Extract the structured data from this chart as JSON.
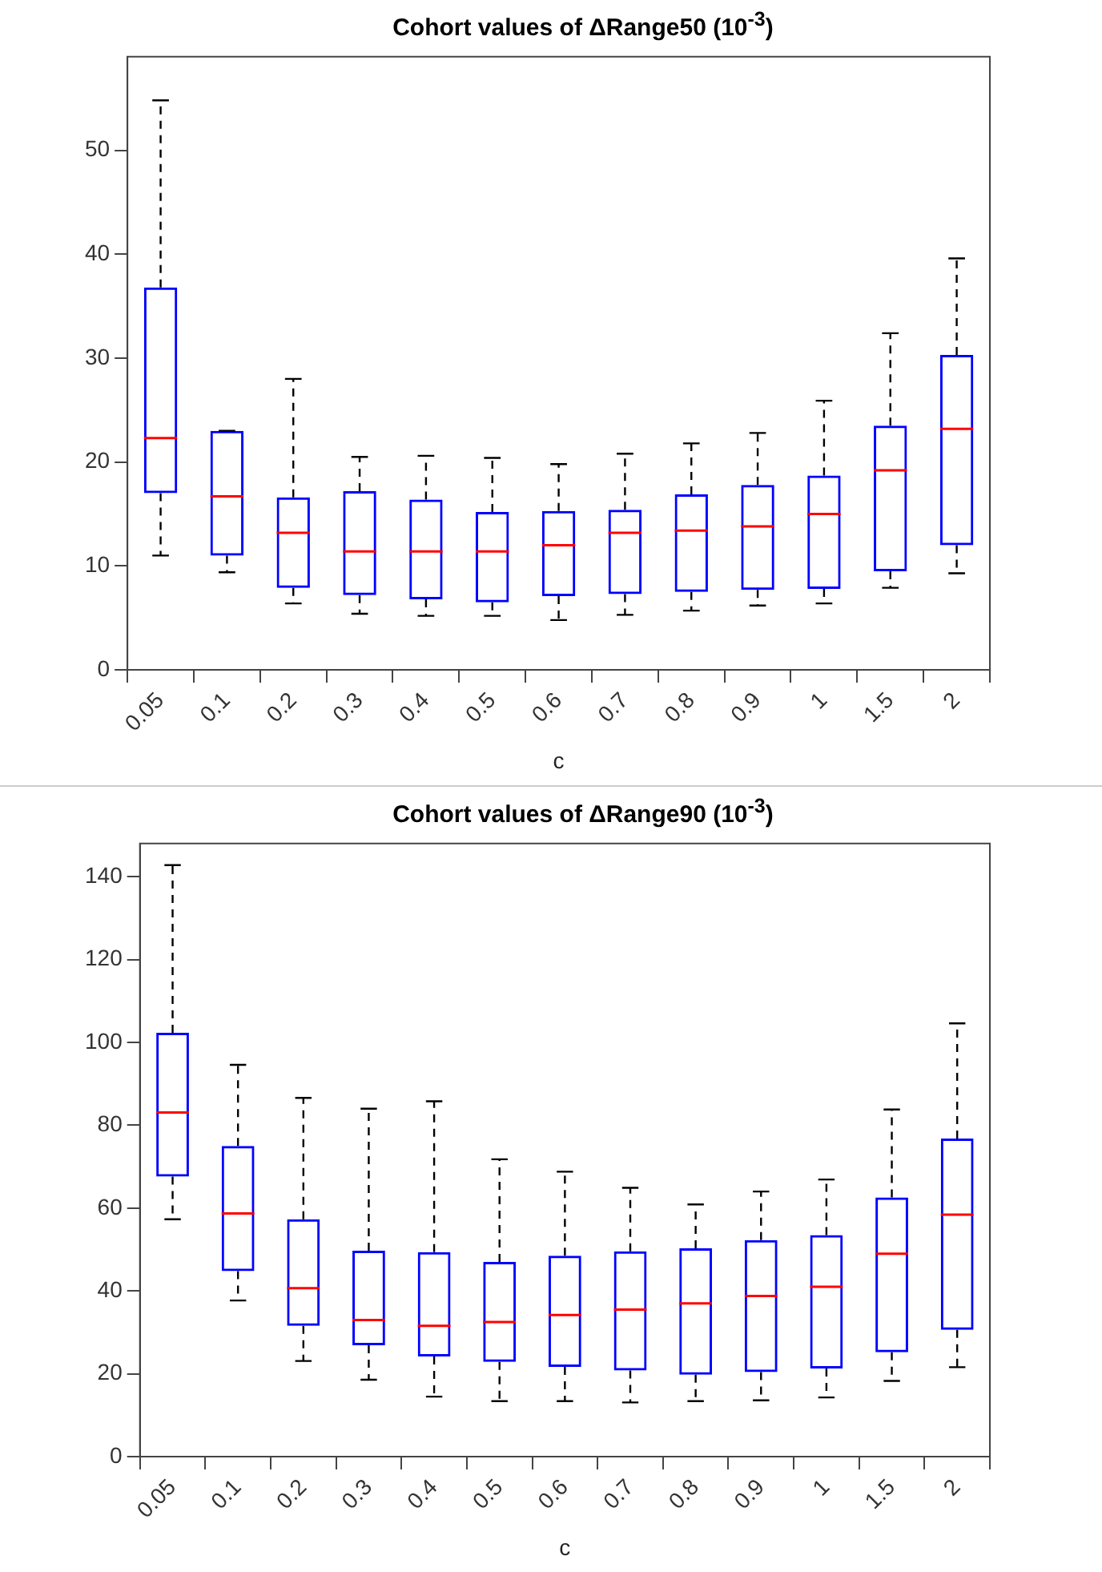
{
  "chart_data": [
    {
      "type": "box",
      "title": "Cohort values of ΔRange50 (10$^{-3}$)",
      "xlabel": "c",
      "color": "#0000ff",
      "categories": [
        "0.05",
        "0.1",
        "0.2",
        "0.3",
        "0.4",
        "0.5",
        "0.6",
        "0.7",
        "0.8",
        "0.9",
        "1",
        "1.5",
        "2"
      ],
      "ylim": [
        0,
        59
      ],
      "yticks": [
        0,
        10,
        20,
        30,
        40,
        50
      ],
      "boxes": [
        {
          "low": 11.0,
          "q1": 17.0,
          "median": 22.3,
          "q3": 36.8,
          "high": 54.8
        },
        {
          "low": 9.4,
          "q1": 11.0,
          "median": 16.7,
          "q3": 23.0,
          "high": 23.0
        },
        {
          "low": 6.4,
          "q1": 7.9,
          "median": 13.2,
          "q3": 16.6,
          "high": 28.0
        },
        {
          "low": 5.4,
          "q1": 7.2,
          "median": 11.4,
          "q3": 17.2,
          "high": 20.5
        },
        {
          "low": 5.2,
          "q1": 6.8,
          "median": 11.4,
          "q3": 16.4,
          "high": 20.6
        },
        {
          "low": 5.2,
          "q1": 6.5,
          "median": 11.4,
          "q3": 15.2,
          "high": 20.4
        },
        {
          "low": 4.8,
          "q1": 7.1,
          "median": 12.0,
          "q3": 15.3,
          "high": 19.8
        },
        {
          "low": 5.3,
          "q1": 7.3,
          "median": 13.2,
          "q3": 15.4,
          "high": 20.8
        },
        {
          "low": 5.7,
          "q1": 7.5,
          "median": 13.4,
          "q3": 16.9,
          "high": 21.8
        },
        {
          "low": 6.2,
          "q1": 7.7,
          "median": 13.8,
          "q3": 17.8,
          "high": 22.8
        },
        {
          "low": 6.4,
          "q1": 7.8,
          "median": 15.0,
          "q3": 18.7,
          "high": 25.9
        },
        {
          "low": 7.9,
          "q1": 9.5,
          "median": 19.2,
          "q3": 23.5,
          "high": 32.4
        },
        {
          "low": 9.3,
          "q1": 12.0,
          "median": 23.2,
          "q3": 30.3,
          "high": 39.6
        }
      ]
    },
    {
      "type": "box",
      "title": "Cohort values of ΔRange90 (10$^{-3}$)",
      "xlabel": "c",
      "color": "#0000ff",
      "categories": [
        "0.05",
        "0.1",
        "0.2",
        "0.3",
        "0.4",
        "0.5",
        "0.6",
        "0.7",
        "0.8",
        "0.9",
        "1",
        "1.5",
        "2"
      ],
      "ylim": [
        0,
        148
      ],
      "yticks": [
        0,
        20,
        40,
        60,
        80,
        100,
        120,
        140
      ],
      "boxes": [
        {
          "low": 57.3,
          "q1": 67.6,
          "median": 83.1,
          "q3": 102.3,
          "high": 142.8
        },
        {
          "low": 37.7,
          "q1": 44.8,
          "median": 58.7,
          "q3": 75.0,
          "high": 94.6
        },
        {
          "low": 23.1,
          "q1": 31.6,
          "median": 40.7,
          "q3": 57.3,
          "high": 86.6
        },
        {
          "low": 18.6,
          "q1": 26.9,
          "median": 33.0,
          "q3": 49.7,
          "high": 84.0
        },
        {
          "low": 14.5,
          "q1": 24.2,
          "median": 31.6,
          "q3": 49.4,
          "high": 85.8
        },
        {
          "low": 13.4,
          "q1": 22.9,
          "median": 32.5,
          "q3": 47.0,
          "high": 71.8
        },
        {
          "low": 13.4,
          "q1": 21.7,
          "median": 34.2,
          "q3": 48.5,
          "high": 68.8
        },
        {
          "low": 13.1,
          "q1": 20.8,
          "median": 35.5,
          "q3": 49.6,
          "high": 64.9
        },
        {
          "low": 13.4,
          "q1": 19.8,
          "median": 37.0,
          "q3": 50.3,
          "high": 60.9
        },
        {
          "low": 13.6,
          "q1": 20.4,
          "median": 38.8,
          "q3": 52.3,
          "high": 64.0
        },
        {
          "low": 14.3,
          "q1": 21.3,
          "median": 41.0,
          "q3": 53.5,
          "high": 66.9
        },
        {
          "low": 18.3,
          "q1": 25.2,
          "median": 49.0,
          "q3": 62.6,
          "high": 83.8
        },
        {
          "low": 21.6,
          "q1": 30.6,
          "median": 58.4,
          "q3": 76.8,
          "high": 104.6
        }
      ]
    }
  ]
}
